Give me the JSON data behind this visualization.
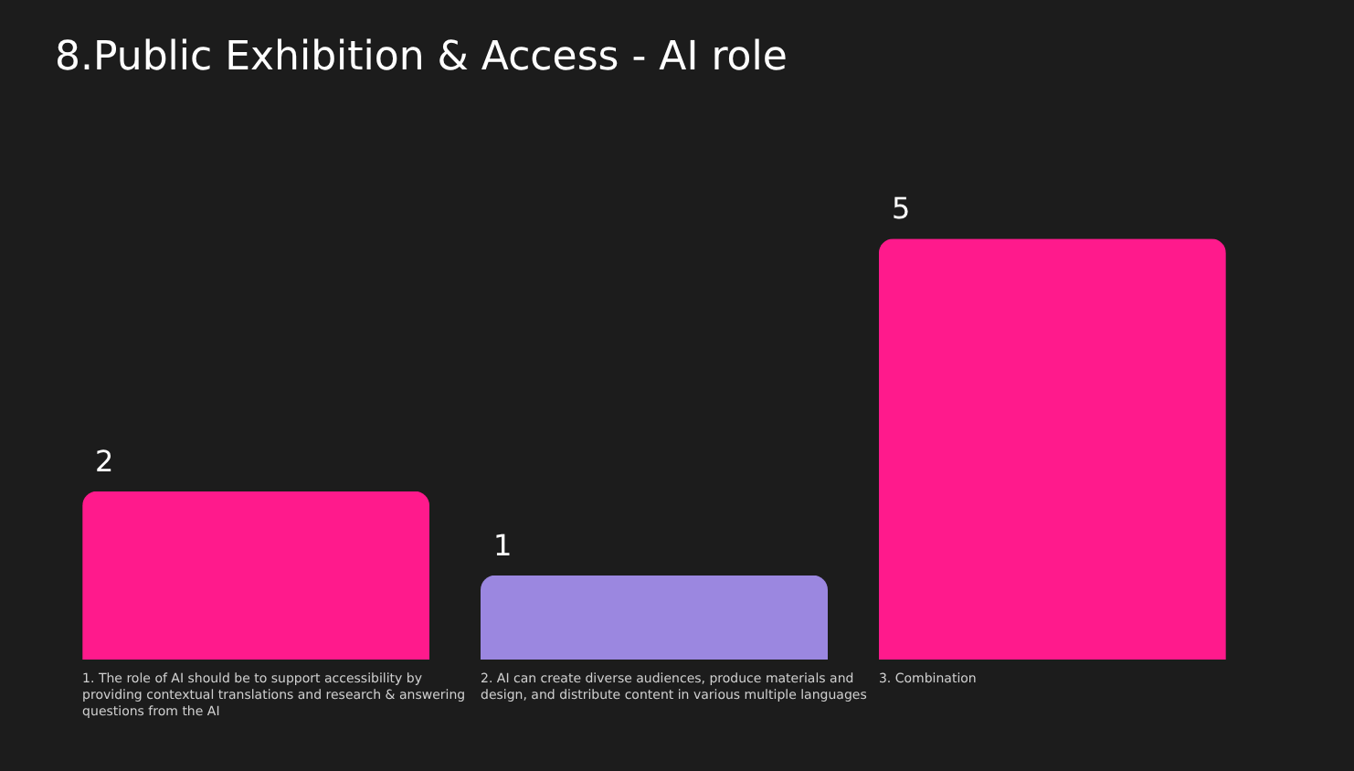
{
  "chart_data": {
    "type": "bar",
    "title": "8.Public Exhibition & Access - AI role",
    "categories": [
      "1. The role of AI should be to support accessibility by providing contextual translations and research & answering questions from the AI",
      "2. AI can create diverse audiences, produce materials and design, and distribute content in various multiple languages",
      "3. Combination"
    ],
    "values": [
      2,
      1,
      5
    ],
    "colors": [
      "#ff1a8c",
      "#9b87e0",
      "#ff1a8c"
    ],
    "data_labels": true
  }
}
